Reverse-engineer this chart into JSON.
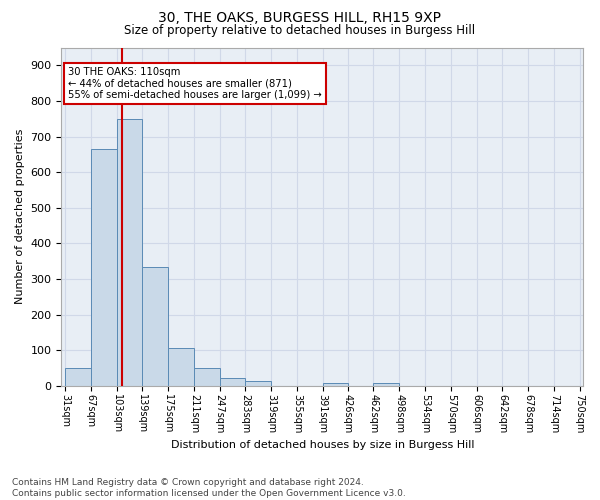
{
  "title": "30, THE OAKS, BURGESS HILL, RH15 9XP",
  "subtitle": "Size of property relative to detached houses in Burgess Hill",
  "xlabel": "Distribution of detached houses by size in Burgess Hill",
  "ylabel": "Number of detached properties",
  "footer_line1": "Contains HM Land Registry data © Crown copyright and database right 2024.",
  "footer_line2": "Contains public sector information licensed under the Open Government Licence v3.0.",
  "bin_labels": [
    "31sqm",
    "67sqm",
    "103sqm",
    "139sqm",
    "175sqm",
    "211sqm",
    "247sqm",
    "283sqm",
    "319sqm",
    "355sqm",
    "391sqm",
    "426sqm",
    "462sqm",
    "498sqm",
    "534sqm",
    "570sqm",
    "606sqm",
    "642sqm",
    "678sqm",
    "714sqm",
    "750sqm"
  ],
  "bar_heights": [
    50,
    665,
    750,
    335,
    107,
    50,
    23,
    15,
    0,
    0,
    8,
    0,
    8,
    0,
    0,
    0,
    0,
    0,
    0,
    0
  ],
  "bar_color": "#c9d9e8",
  "bar_edge_color": "#5a8ab5",
  "grid_color": "#d0d8e8",
  "background_color": "#e8eef5",
  "vline_x": 110,
  "vline_color": "#cc0000",
  "annotation_text": "30 THE OAKS: 110sqm\n← 44% of detached houses are smaller (871)\n55% of semi-detached houses are larger (1,099) →",
  "annotation_box_color": "#ffffff",
  "annotation_box_edge": "#cc0000",
  "ylim": [
    0,
    950
  ],
  "yticks": [
    0,
    100,
    200,
    300,
    400,
    500,
    600,
    700,
    800,
    900
  ],
  "bin_values": [
    31,
    67,
    103,
    139,
    175,
    211,
    247,
    283,
    319,
    355,
    391,
    426,
    462,
    498,
    534,
    570,
    606,
    642,
    678,
    714,
    750
  ]
}
